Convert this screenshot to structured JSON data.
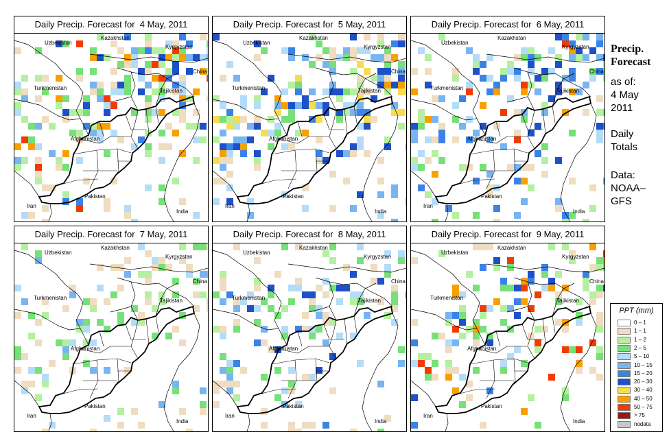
{
  "panels": [
    {
      "title": "Daily Precip. Forecast for  4 May, 2011"
    },
    {
      "title": "Daily Precip. Forecast for  5 May, 2011"
    },
    {
      "title": "Daily Precip. Forecast for  6 May, 2011"
    },
    {
      "title": "Daily Precip. Forecast for  7 May, 2011"
    },
    {
      "title": "Daily Precip. Forecast for  8 May, 2011"
    },
    {
      "title": "Daily Precip. Forecast for  9 May, 2011"
    }
  ],
  "country_labels": {
    "kazakhstan": "Kazakhstan",
    "uzbekistan": "Uzbekistan",
    "kyrgyzstan": "Kyrgyzstan",
    "china": "China",
    "turkmenistan": "Turkmenistan",
    "tajikistan": "Tajikistan",
    "afghanistan": "Afghanistan",
    "iran": "Iran",
    "pakistan": "Pakistan",
    "india": "India"
  },
  "sidebar": {
    "title_line1": "Precip.",
    "title_line2": "Forecast",
    "asof_line1": "as of:",
    "asof_line2": "4 May",
    "asof_line3": "2011",
    "totals_line1": "Daily",
    "totals_line2": "Totals",
    "data_line1": "Data:",
    "data_line2": "NOAA–",
    "data_line3": "GFS"
  },
  "legend": {
    "title": "PPT (mm)",
    "items": [
      {
        "label": "0 – 1",
        "color": "#ffffff"
      },
      {
        "label": "1 – 1",
        "color": "#f0dcc0"
      },
      {
        "label": "1 – 2",
        "color": "#b4f0a0"
      },
      {
        "label": "2 – 5",
        "color": "#78e078"
      },
      {
        "label": "5 – 10",
        "color": "#b4dcf8"
      },
      {
        "label": "10 – 15",
        "color": "#78b4f0"
      },
      {
        "label": "15 – 20",
        "color": "#3c82e6"
      },
      {
        "label": "20 – 30",
        "color": "#1e50c8"
      },
      {
        "label": "30 – 40",
        "color": "#f8dc50"
      },
      {
        "label": "40 – 50",
        "color": "#f8a000"
      },
      {
        "label": "50 – 75",
        "color": "#f03c00"
      },
      {
        "label": "> 75",
        "color": "#a01414"
      },
      {
        "label": "nodata",
        "color": "#c8c8c8"
      }
    ]
  }
}
